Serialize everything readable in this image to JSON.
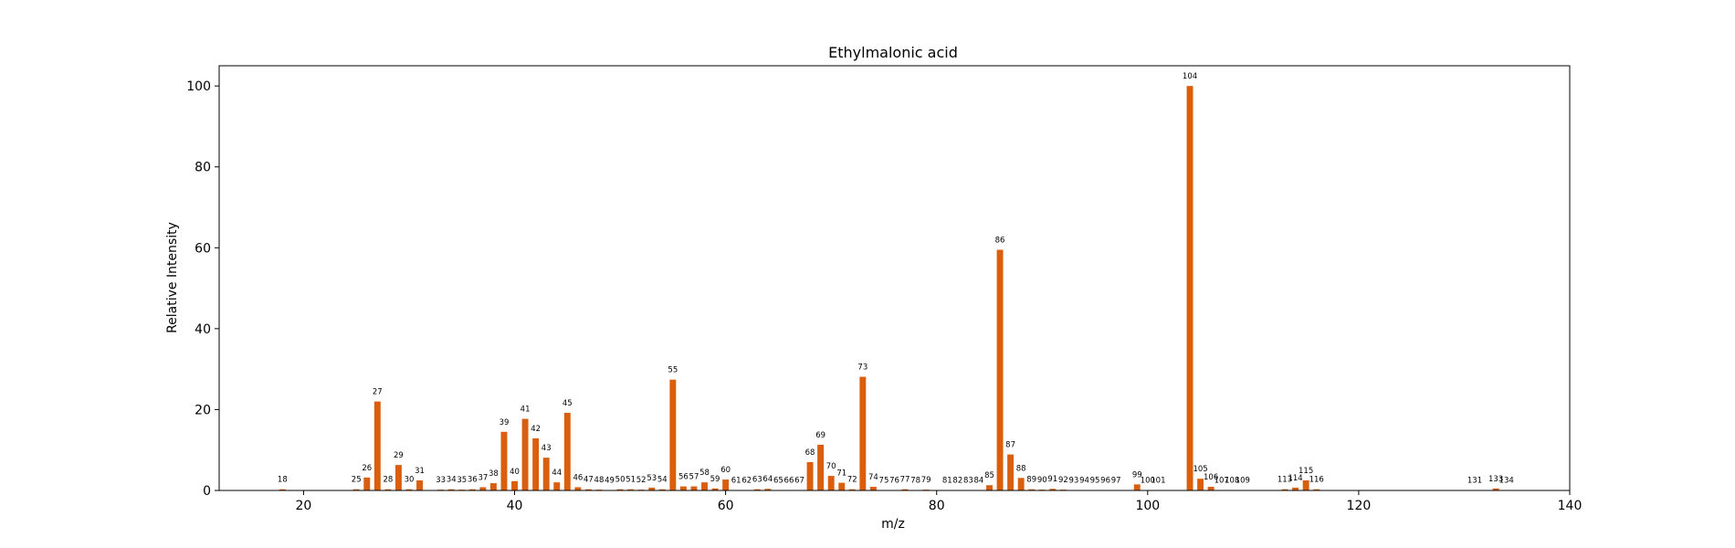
{
  "chart_data": {
    "type": "bar",
    "title": "Ethylmalonic acid",
    "xlabel": "m/z",
    "ylabel": "Relative Intensity",
    "xlim": [
      12,
      140
    ],
    "ylim": [
      0,
      105
    ],
    "xticks": [
      20,
      40,
      60,
      80,
      100,
      120,
      140
    ],
    "yticks": [
      0,
      20,
      40,
      60,
      80,
      100
    ],
    "grid": false,
    "bar_color": "#d95f0e",
    "x": [
      18,
      25,
      26,
      27,
      28,
      29,
      30,
      31,
      33,
      34,
      35,
      36,
      37,
      38,
      39,
      40,
      41,
      42,
      43,
      44,
      45,
      46,
      47,
      48,
      49,
      50,
      51,
      52,
      53,
      54,
      55,
      56,
      57,
      58,
      59,
      60,
      61,
      62,
      63,
      64,
      65,
      66,
      67,
      68,
      69,
      70,
      71,
      72,
      73,
      74,
      75,
      76,
      77,
      78,
      79,
      81,
      82,
      83,
      84,
      85,
      86,
      87,
      88,
      89,
      90,
      91,
      92,
      93,
      94,
      95,
      96,
      97,
      99,
      100,
      101,
      104,
      105,
      106,
      107,
      108,
      109,
      113,
      114,
      115,
      116,
      131,
      133,
      134
    ],
    "values": [
      0.3,
      0.3,
      3.2,
      22.0,
      0.3,
      6.3,
      0.3,
      2.5,
      0.2,
      0.3,
      0.2,
      0.3,
      0.8,
      1.8,
      14.5,
      2.3,
      17.7,
      12.9,
      8.1,
      2.0,
      19.2,
      0.8,
      0.3,
      0.2,
      0.1,
      0.3,
      0.3,
      0.2,
      0.7,
      0.3,
      27.4,
      1.0,
      1.0,
      2.0,
      0.5,
      2.7,
      0.1,
      0.1,
      0.3,
      0.4,
      0.1,
      0.1,
      0.1,
      7.0,
      11.3,
      3.6,
      1.9,
      0.3,
      28.1,
      0.9,
      0.1,
      0.1,
      0.3,
      0.1,
      0.2,
      0.1,
      0.1,
      0.1,
      0.1,
      1.3,
      59.5,
      8.9,
      3.1,
      0.3,
      0.2,
      0.4,
      0.2,
      0.1,
      0.1,
      0.1,
      0.1,
      0.1,
      1.5,
      0.1,
      0.1,
      100.0,
      2.9,
      0.9,
      0.1,
      0.1,
      0.1,
      0.3,
      0.7,
      2.5,
      0.3,
      0.1,
      0.5,
      0.1
    ],
    "labels": [
      "18",
      "25",
      "26",
      "27",
      "28",
      "29",
      "30",
      "31",
      "33",
      "34",
      "35",
      "36",
      "37",
      "38",
      "39",
      "40",
      "41",
      "42",
      "43",
      "44",
      "45",
      "46",
      "47",
      "48",
      "49",
      "50",
      "51",
      "52",
      "53",
      "54",
      "55",
      "56",
      "57",
      "58",
      "59",
      "60",
      "61",
      "62",
      "63",
      "64",
      "65",
      "66",
      "67",
      "68",
      "69",
      "70",
      "71",
      "72",
      "73",
      "74",
      "75",
      "76",
      "77",
      "78",
      "79",
      "81",
      "82",
      "83",
      "84",
      "85",
      "86",
      "87",
      "88",
      "89",
      "90",
      "91",
      "92",
      "93",
      "94",
      "95",
      "96",
      "97",
      "99",
      "100",
      "101",
      "104",
      "105",
      "106",
      "107",
      "108",
      "109",
      "113",
      "114",
      "115",
      "116",
      "131",
      "133",
      "134"
    ]
  }
}
